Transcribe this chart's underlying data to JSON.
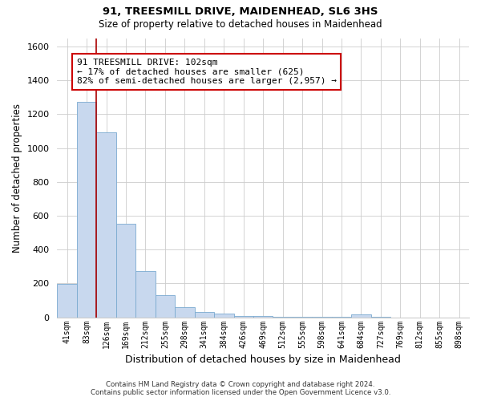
{
  "title1": "91, TREESMILL DRIVE, MAIDENHEAD, SL6 3HS",
  "title2": "Size of property relative to detached houses in Maidenhead",
  "xlabel": "Distribution of detached houses by size in Maidenhead",
  "ylabel": "Number of detached properties",
  "footer1": "Contains HM Land Registry data © Crown copyright and database right 2024.",
  "footer2": "Contains public sector information licensed under the Open Government Licence v3.0.",
  "bin_labels": [
    "41sqm",
    "83sqm",
    "126sqm",
    "169sqm",
    "212sqm",
    "255sqm",
    "298sqm",
    "341sqm",
    "384sqm",
    "426sqm",
    "469sqm",
    "512sqm",
    "555sqm",
    "598sqm",
    "641sqm",
    "684sqm",
    "727sqm",
    "769sqm",
    "812sqm",
    "855sqm",
    "898sqm"
  ],
  "bar_heights": [
    195,
    1275,
    1095,
    555,
    275,
    130,
    60,
    30,
    20,
    10,
    6,
    5,
    4,
    3,
    2,
    18,
    2,
    0,
    0,
    0,
    0
  ],
  "bar_color": "#c8d8ee",
  "bar_edge_color": "#7aaad0",
  "grid_color": "#cccccc",
  "background_color": "#ffffff",
  "plot_background_color": "#ffffff",
  "vline_color": "#aa0000",
  "vline_x_idx": 1.5,
  "annotation_text": "91 TREESMILL DRIVE: 102sqm\n← 17% of detached houses are smaller (625)\n82% of semi-detached houses are larger (2,957) →",
  "annotation_box_color": "#ffffff",
  "annotation_box_edge": "#cc0000",
  "ylim": [
    0,
    1650
  ],
  "yticks": [
    0,
    200,
    400,
    600,
    800,
    1000,
    1200,
    1400,
    1600
  ]
}
